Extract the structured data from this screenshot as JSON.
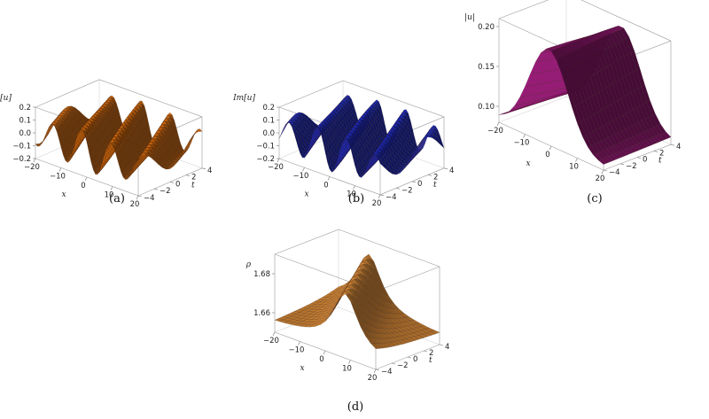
{
  "figure": {
    "captions": [
      "(a)",
      "(b)",
      "(c)",
      "(d)"
    ]
  },
  "chart_data": [
    {
      "type": "surface",
      "panel": "(a)",
      "zlabel": "ℜe[u]",
      "xlabel": "x",
      "ylabel": "t",
      "xlim": [
        -20,
        20
      ],
      "ylim": [
        -4,
        4
      ],
      "zlim": [
        -0.2,
        0.2
      ],
      "xticks": [
        "−20",
        "−10",
        "0",
        "10",
        "20"
      ],
      "yticks": [
        "−4",
        "−2",
        "0",
        "2",
        "4"
      ],
      "zticks": [
        "0.2",
        "0.1",
        "0.0",
        "−0.1",
        "−0.2"
      ],
      "color": "#e8750f"
    },
    {
      "type": "surface",
      "panel": "(b)",
      "zlabel": "Im[u]",
      "xlabel": "x",
      "ylabel": "t",
      "xlim": [
        -20,
        20
      ],
      "ylim": [
        -4,
        4
      ],
      "zlim": [
        -0.2,
        0.2
      ],
      "xticks": [
        "−20",
        "−10",
        "0",
        "10",
        "20"
      ],
      "yticks": [
        "−4",
        "−2",
        "0",
        "2",
        "4"
      ],
      "zticks": [
        "0.2",
        "0.1",
        "0.0",
        "−0.1",
        "−0.2"
      ],
      "color": "#1f2fd6"
    },
    {
      "type": "surface",
      "panel": "(c)",
      "zlabel": "|u|",
      "xlabel": "x",
      "ylabel": "t",
      "xlim": [
        -20,
        20
      ],
      "ylim": [
        -4,
        4
      ],
      "zlim": [
        0.08,
        0.21
      ],
      "xticks": [
        "−20",
        "−10",
        "0",
        "10",
        "20"
      ],
      "yticks": [
        "−4",
        "−2",
        "0",
        "2",
        "4"
      ],
      "zticks": [
        "0.20",
        "0.15",
        "0.10"
      ],
      "color": "#9c1a7a"
    },
    {
      "type": "surface",
      "panel": "(d)",
      "zlabel": "ρ",
      "xlabel": "x",
      "ylabel": "t",
      "xlim": [
        -20,
        20
      ],
      "ylim": [
        -4,
        4
      ],
      "zlim": [
        1.65,
        1.69
      ],
      "xticks": [
        "−20",
        "−10",
        "0",
        "10",
        "20"
      ],
      "yticks": [
        "−4",
        "−2",
        "0",
        "2",
        "4"
      ],
      "zticks": [
        "1.68",
        "1.66"
      ],
      "color": "#f39a3c"
    }
  ]
}
